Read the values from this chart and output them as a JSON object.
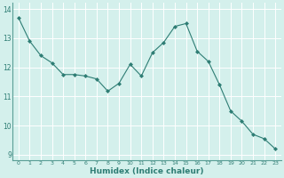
{
  "x": [
    0,
    1,
    2,
    3,
    4,
    5,
    6,
    7,
    8,
    9,
    10,
    11,
    12,
    13,
    14,
    15,
    16,
    17,
    18,
    19,
    20,
    21,
    22,
    23
  ],
  "y": [
    13.7,
    12.9,
    12.4,
    12.15,
    11.75,
    11.75,
    11.7,
    11.6,
    11.18,
    11.45,
    12.1,
    11.7,
    12.5,
    12.85,
    13.4,
    13.5,
    12.55,
    12.2,
    11.4,
    10.5,
    10.15,
    9.7,
    9.55,
    9.2
  ],
  "xlabel": "Humidex (Indice chaleur)",
  "ylim": [
    8.8,
    14.2
  ],
  "xlim": [
    -0.5,
    23.5
  ],
  "yticks": [
    9,
    10,
    11,
    12,
    13,
    14
  ],
  "xtick_labels": [
    "0",
    "1",
    "2",
    "3",
    "4",
    "5",
    "6",
    "7",
    "8",
    "9",
    "10",
    "11",
    "12",
    "13",
    "14",
    "15",
    "16",
    "17",
    "18",
    "19",
    "20",
    "21",
    "22",
    "23"
  ],
  "line_color": "#2e7d74",
  "marker_color": "#2e7d74",
  "bg_color": "#d4f0ec",
  "grid_color": "#c8e8e4",
  "axis_label_color": "#2e7d74",
  "tick_color": "#2e7d74",
  "spine_color": "#5a9e96"
}
